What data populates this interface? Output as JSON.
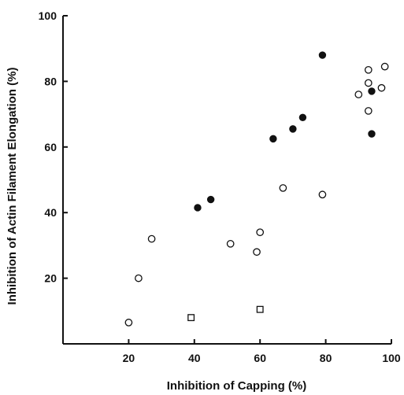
{
  "chart_data": {
    "type": "scatter",
    "xlabel": "Inhibition of Capping (%)",
    "ylabel": "Inhibition of Actin Filament Elongation (%)",
    "xlim": [
      0,
      100
    ],
    "ylim": [
      0,
      100
    ],
    "x_ticks": [
      20,
      40,
      60,
      80,
      100
    ],
    "y_ticks": [
      20,
      40,
      60,
      80,
      100
    ],
    "grid": false,
    "series": [
      {
        "marker": "filled-circle",
        "color": "#111111",
        "points": [
          {
            "x": 41,
            "y": 41.5
          },
          {
            "x": 45,
            "y": 44
          },
          {
            "x": 64,
            "y": 62.5
          },
          {
            "x": 70,
            "y": 65.5
          },
          {
            "x": 73,
            "y": 69
          },
          {
            "x": 79,
            "y": 88
          },
          {
            "x": 94,
            "y": 77
          },
          {
            "x": 94,
            "y": 64
          }
        ]
      },
      {
        "marker": "open-circle",
        "color": "#111111",
        "points": [
          {
            "x": 20,
            "y": 6.5
          },
          {
            "x": 23,
            "y": 20
          },
          {
            "x": 27,
            "y": 32
          },
          {
            "x": 51,
            "y": 30.5
          },
          {
            "x": 59,
            "y": 28
          },
          {
            "x": 60,
            "y": 34
          },
          {
            "x": 67,
            "y": 47.5
          },
          {
            "x": 79,
            "y": 45.5
          },
          {
            "x": 90,
            "y": 76
          },
          {
            "x": 93,
            "y": 83.5
          },
          {
            "x": 93,
            "y": 79.5
          },
          {
            "x": 93,
            "y": 71
          },
          {
            "x": 97,
            "y": 78
          },
          {
            "x": 98,
            "y": 84.5
          }
        ]
      },
      {
        "marker": "open-square",
        "color": "#111111",
        "points": [
          {
            "x": 39,
            "y": 8
          },
          {
            "x": 60,
            "y": 10.5
          }
        ]
      }
    ]
  }
}
